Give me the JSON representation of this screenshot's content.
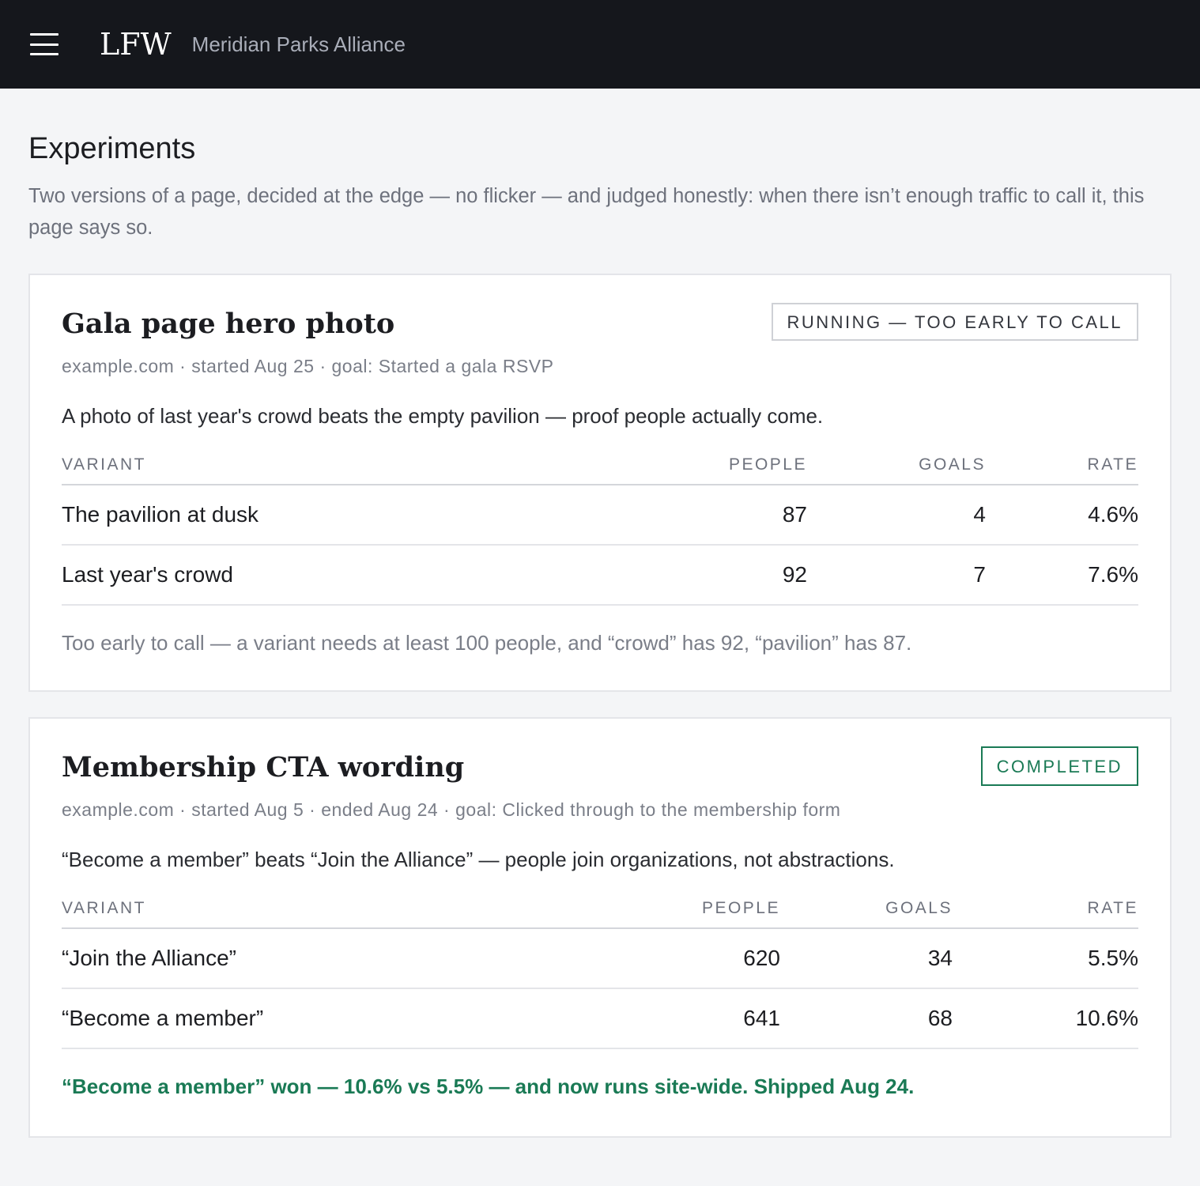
{
  "header": {
    "logo": "LFW",
    "org_name": "Meridian Parks Alliance"
  },
  "page": {
    "title": "Experiments",
    "subtitle": "Two versions of a page, decided at the edge — no flicker — and judged honestly: when there isn’t enough traffic to call it, this page says so."
  },
  "experiments": [
    {
      "title": "Gala page hero photo",
      "status": "RUNNING — TOO EARLY TO CALL",
      "meta": "example.com · started Aug 25 · goal: Started a gala RSVP",
      "hypothesis": "A photo of last year's crowd beats the empty pavilion — proof people actually come.",
      "columns": [
        "VARIANT",
        "PEOPLE",
        "GOALS",
        "RATE"
      ],
      "rows": [
        {
          "variant": "The pavilion at dusk",
          "people": "87",
          "goals": "4",
          "rate": "4.6%"
        },
        {
          "variant": "Last year's crowd",
          "people": "92",
          "goals": "7",
          "rate": "7.6%"
        }
      ],
      "note": "Too early to call — a variant needs at least 100 people, and “crowd” has 92, “pavilion” has 87."
    },
    {
      "title": "Membership CTA wording",
      "status": "COMPLETED",
      "meta": "example.com · started Aug 5 · ended Aug 24 · goal: Clicked through to the membership form",
      "hypothesis": "“Become a member” beats “Join the Alliance” — people join organizations, not abstractions.",
      "columns": [
        "VARIANT",
        "PEOPLE",
        "GOALS",
        "RATE"
      ],
      "rows": [
        {
          "variant": "“Join the Alliance”",
          "people": "620",
          "goals": "34",
          "rate": "5.5%"
        },
        {
          "variant": "“Become a member”",
          "people": "641",
          "goals": "68",
          "rate": "10.6%"
        }
      ],
      "note": "“Become a member” won — 10.6% vs 5.5% — and now runs site-wide. Shipped Aug 24."
    }
  ],
  "colors": {
    "topbar": "#15171c",
    "success": "#1a7a55",
    "muted_text": "#6d717c",
    "background": "#f4f5f7"
  },
  "icons": {
    "menu": "hamburger-menu-icon"
  }
}
